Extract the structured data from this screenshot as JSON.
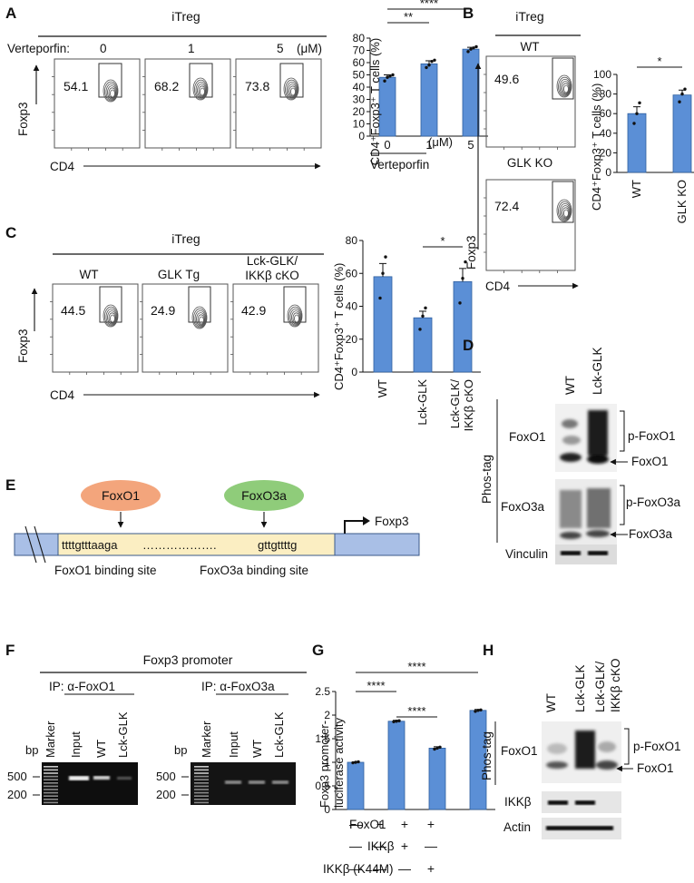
{
  "panels": {
    "A": "A",
    "B": "B",
    "C": "C",
    "D": "D",
    "E": "E",
    "F": "F",
    "G": "G",
    "H": "H"
  },
  "A": {
    "header": "iTreg",
    "treatment_label": "Verteporfin:",
    "doses": [
      "0",
      "1",
      "5"
    ],
    "unit": "(μM)",
    "percents": [
      "54.1",
      "68.2",
      "73.8"
    ],
    "y_axis": "Foxp3",
    "x_axis": "CD4",
    "bar_ylabel": "CD4⁺Foxp3⁺ T cells (%)",
    "bar_xlabel": "Verteporfin",
    "sig": [
      "**",
      "****"
    ]
  },
  "B": {
    "header": "iTreg",
    "plot_labels": [
      "WT",
      "GLK KO"
    ],
    "percents": [
      "49.6",
      "72.4"
    ],
    "y_axis": "Foxp3",
    "x_axis": "CD4",
    "bar_ylabel": "CD4⁺Foxp3⁺ T cells (%)",
    "sig": "*"
  },
  "C": {
    "header": "iTreg",
    "plot_labels": [
      "WT",
      "GLK Tg",
      "Lck-GLK/\nIKKβ cKO"
    ],
    "percents": [
      "44.5",
      "24.9",
      "42.9"
    ],
    "y_axis": "Foxp3",
    "x_axis": "CD4",
    "bar_ylabel": "CD4⁺Foxp3⁺ T cells (%)",
    "sig": "*"
  },
  "D": {
    "lanes": [
      "WT",
      "Lck-GLK"
    ],
    "side_label": "Phos-tag",
    "rows": [
      "FoxO1",
      "FoxO3a",
      "Vinculin"
    ],
    "annotations": [
      "p-FoxO1",
      "FoxO1",
      "p-FoxO3a",
      "FoxO3a"
    ]
  },
  "E": {
    "factor1": "FoxO1",
    "factor2": "FoxO3a",
    "sequence_left": "ttttgtttaaga",
    "sequence_dots": "……………….",
    "sequence_right": "gttgttttg",
    "gene": "Foxp3",
    "site1": "FoxO1 binding site",
    "site2": "FoxO3a binding site"
  },
  "F": {
    "title": "Foxp3 promoter",
    "ip1": "IP: α-FoxO1",
    "ip2": "IP: α-FoxO3a",
    "lanes": [
      "Marker",
      "Input",
      "WT",
      "Lck-GLK"
    ],
    "bp_label": "bp",
    "size_500": "500",
    "size_200": "200"
  },
  "G": {
    "ylabel": "Foxp3 promoter-\nluciferase activity",
    "sig": [
      "****",
      "****",
      "****"
    ],
    "row_labels": [
      "FoxO1",
      "IKKβ",
      "IKKβ (K44M)"
    ],
    "row_marks": [
      [
        "—",
        "+",
        "+",
        "+"
      ],
      [
        "—",
        "—",
        "+",
        "—"
      ],
      [
        "—",
        "—",
        "—",
        "+"
      ]
    ]
  },
  "H": {
    "lanes": [
      "WT",
      "Lck-GLK",
      "Lck-GLK/\nIKKβ cKO"
    ],
    "side_label": "Phos-tag",
    "rows": [
      "FoxO1",
      "IKKβ",
      "Actin"
    ],
    "annotations": [
      "p-FoxO1",
      "FoxO1"
    ]
  },
  "chart_data": [
    {
      "id": "A-bar",
      "type": "bar",
      "categories": [
        "0",
        "1",
        "5"
      ],
      "values": [
        48,
        59,
        71
      ],
      "errors": [
        2,
        2.5,
        1.5
      ],
      "points": [
        [
          45,
          48,
          49,
          50
        ],
        [
          56,
          58,
          61,
          62
        ],
        [
          69,
          71,
          72,
          73
        ]
      ],
      "ylabel": "CD4⁺Foxp3⁺ T cells (%)",
      "xlabel": "Verteporfin (μM)",
      "ylim": [
        0,
        80
      ],
      "yticks": [
        0,
        10,
        20,
        30,
        40,
        50,
        60,
        70,
        80
      ]
    },
    {
      "id": "B-bar",
      "type": "bar",
      "categories": [
        "WT",
        "GLK KO"
      ],
      "values": [
        60,
        79
      ],
      "errors": [
        7,
        5
      ],
      "points": [
        [
          50,
          60,
          71
        ],
        [
          72,
          80,
          85
        ]
      ],
      "ylabel": "CD4⁺Foxp3⁺ T cells (%)",
      "ylim": [
        0,
        100
      ],
      "yticks": [
        0,
        20,
        40,
        60,
        80,
        100
      ]
    },
    {
      "id": "C-bar",
      "type": "bar",
      "categories": [
        "WT",
        "Lck-GLK",
        "Lck-GLK/\nIKKβ cKO"
      ],
      "values": [
        58,
        33,
        55
      ],
      "errors": [
        8,
        4,
        8
      ],
      "points": [
        [
          45,
          60,
          70
        ],
        [
          26,
          34,
          39
        ],
        [
          42,
          57,
          67
        ]
      ],
      "ylabel": "CD4⁺Foxp3⁺ T cells (%)",
      "ylim": [
        0,
        80
      ],
      "yticks": [
        0,
        20,
        40,
        60,
        80
      ]
    },
    {
      "id": "G-bar",
      "type": "bar",
      "categories": [
        "1",
        "2",
        "3",
        "4"
      ],
      "values": [
        1.0,
        1.87,
        1.3,
        2.1
      ],
      "errors": [
        0.01,
        0.02,
        0.03,
        0.02
      ],
      "points": [
        [
          0.99,
          1.0,
          1.01
        ],
        [
          1.86,
          1.87,
          1.88
        ],
        [
          1.28,
          1.3,
          1.32
        ],
        [
          2.08,
          2.1,
          2.11
        ]
      ],
      "ylabel": "Foxp3 promoter-luciferase activity",
      "ylim": [
        0,
        2.5
      ],
      "yticks": [
        0,
        0.5,
        1.0,
        1.5,
        2.0,
        2.5
      ]
    }
  ]
}
